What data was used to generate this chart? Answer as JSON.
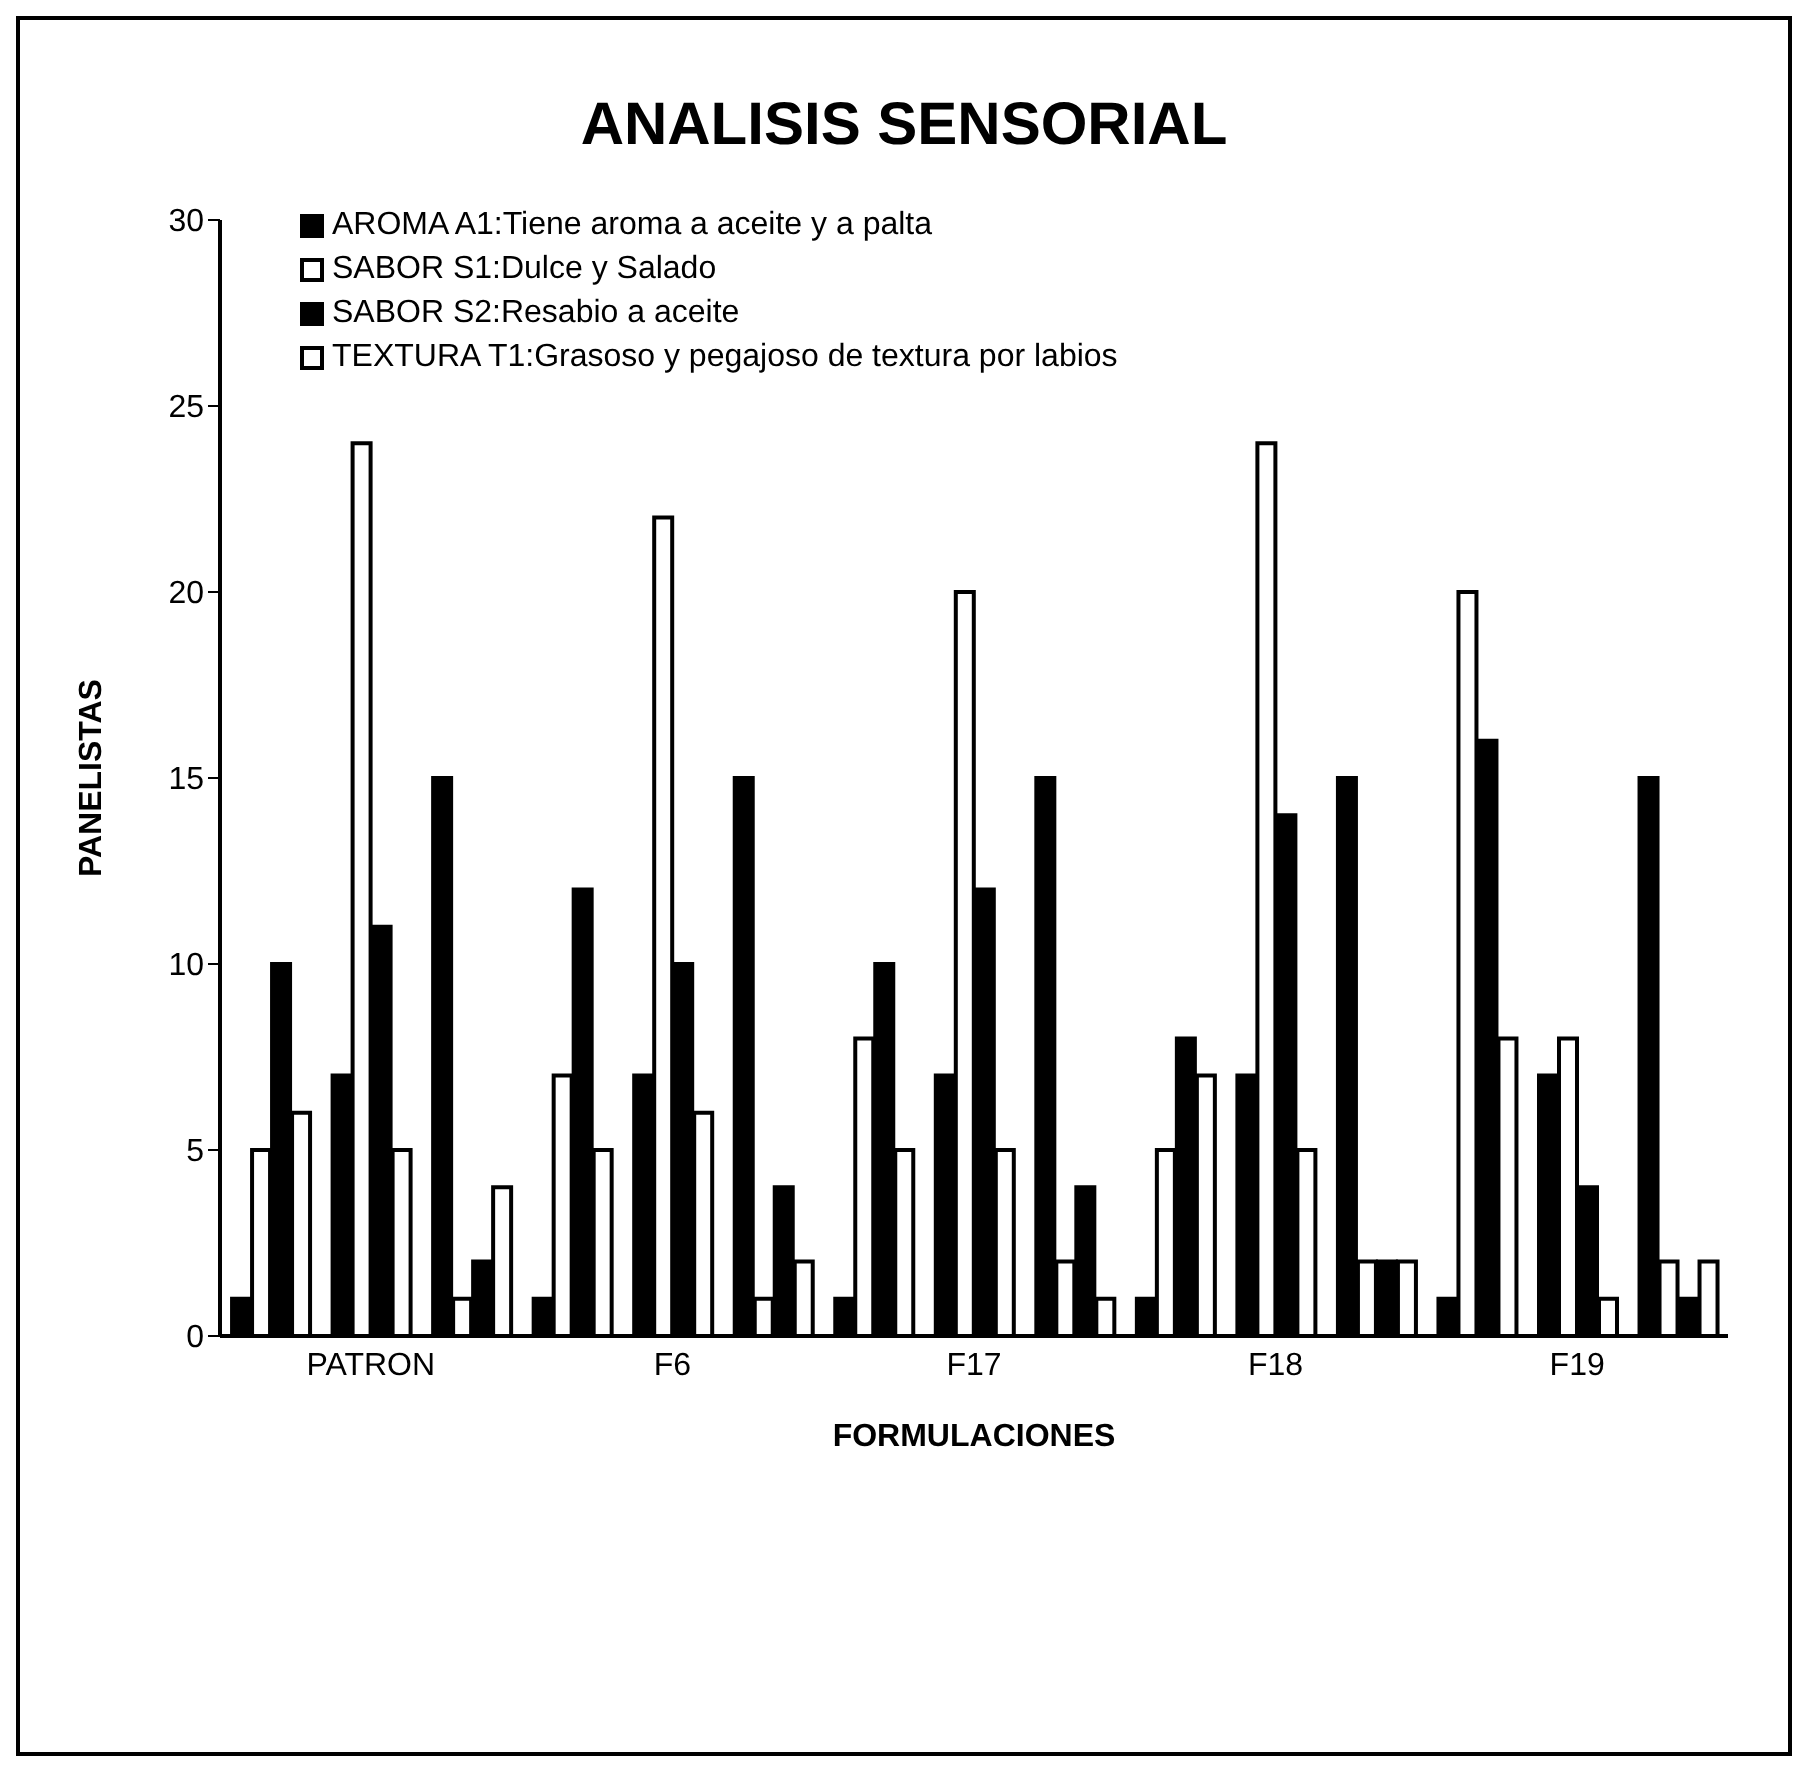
{
  "chart_data": {
    "type": "bar",
    "title": "ANALISIS SENSORIAL",
    "xlabel": "FORMULACIONES",
    "ylabel": "PANELISTAS",
    "categories": [
      null,
      "PATRON",
      null,
      null,
      "F6",
      null,
      null,
      "F17",
      null,
      null,
      "F18",
      null,
      null,
      "F19",
      null
    ],
    "series": [
      {
        "name": "AROMA A1:Tiene  aroma a aceite y a palta",
        "color": "#000000",
        "values": [
          1,
          7,
          15,
          1,
          7,
          15,
          1,
          7,
          15,
          1,
          7,
          15,
          1,
          7,
          15
        ]
      },
      {
        "name": "SABOR S1:Dulce y Salado",
        "color": "#ffffff",
        "values": [
          5,
          24,
          1,
          7,
          22,
          1,
          8,
          20,
          2,
          5,
          24,
          2,
          20,
          8,
          2
        ]
      },
      {
        "name": "SABOR S2:Resabio a aceite",
        "color": "#000000",
        "values": [
          10,
          11,
          2,
          12,
          10,
          4,
          10,
          12,
          4,
          8,
          14,
          2,
          16,
          4,
          1
        ]
      },
      {
        "name": "TEXTURA T1:Grasoso y pegajoso de textura por labios",
        "color": "#ffffff",
        "values": [
          6,
          5,
          4,
          5,
          6,
          2,
          5,
          5,
          1,
          7,
          5,
          2,
          8,
          1,
          2
        ]
      }
    ],
    "ylim": [
      0,
      30
    ],
    "yticks": [
      0,
      5,
      10,
      15,
      20,
      25,
      30
    ],
    "legend": "top left"
  }
}
